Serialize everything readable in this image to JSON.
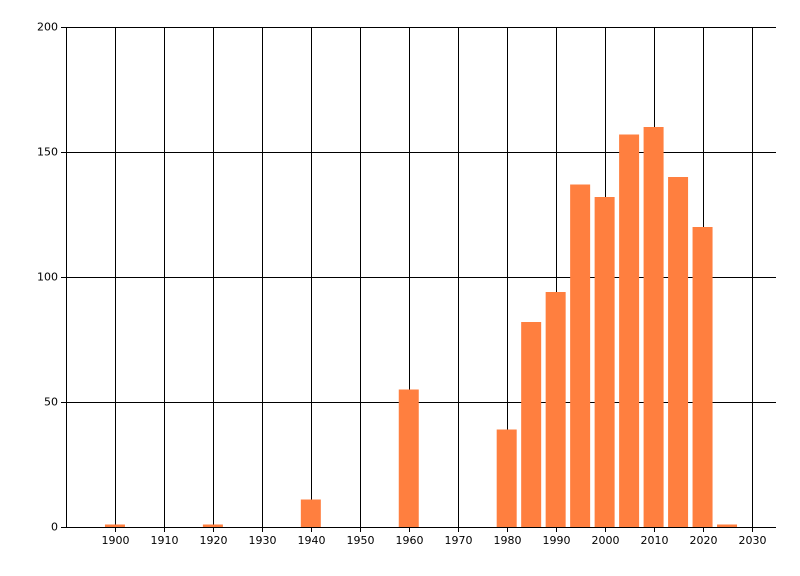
{
  "chart_data": {
    "type": "bar",
    "x": [
      1900,
      1920,
      1940,
      1960,
      1980,
      1985,
      1990,
      1995,
      2000,
      2005,
      2010,
      2015,
      2020,
      2025
    ],
    "values": [
      1,
      1,
      11,
      55,
      39,
      82,
      94,
      137,
      132,
      157,
      160,
      140,
      120,
      1
    ],
    "color": "#ff7f3f",
    "xlim": [
      1890,
      2035
    ],
    "xticks": [
      1900,
      1910,
      1920,
      1930,
      1940,
      1950,
      1960,
      1970,
      1980,
      1990,
      2000,
      2010,
      2020,
      2030
    ],
    "ylim": [
      0,
      200
    ],
    "yticks": [
      0,
      50,
      100,
      150,
      200
    ],
    "grid": true
  }
}
